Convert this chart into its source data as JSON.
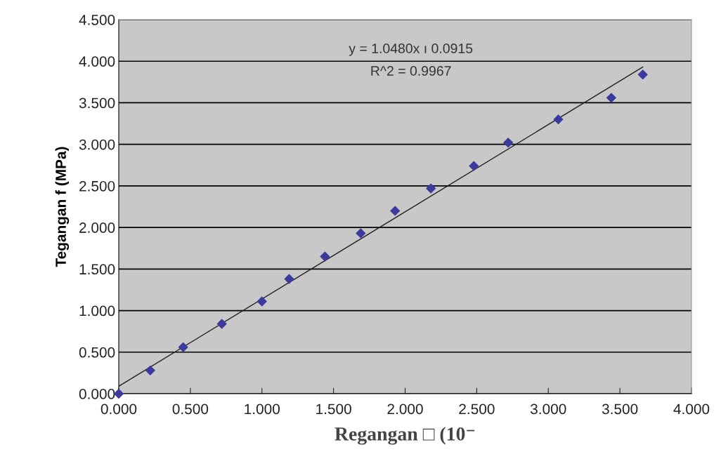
{
  "chart_data": {
    "type": "scatter",
    "xlabel": "Regangan □ (10⁻",
    "ylabel": "Tegangan f (MPa)",
    "annotations": [
      "y = 1.0480x ı 0.0915",
      "R^2 = 0.9967"
    ],
    "series": [
      {
        "color": "#3b3b9e",
        "marker": "diamond",
        "x": [
          0,
          0.22,
          0.45,
          0.72,
          1.0,
          1.19,
          1.44,
          1.69,
          1.93,
          2.18,
          2.48,
          2.72,
          3.07,
          3.44,
          3.66
        ],
        "values": [
          0,
          0.28,
          0.56,
          0.84,
          1.11,
          1.38,
          1.65,
          1.93,
          2.2,
          2.47,
          2.74,
          3.02,
          3.3,
          3.56,
          3.84
        ]
      },
      {
        "type": "line",
        "color": "#222222",
        "marker": "none",
        "x": [
          0,
          3.66
        ],
        "values": [
          0.09,
          3.93
        ]
      }
    ],
    "xlim": [
      0,
      4
    ],
    "ylim": [
      0,
      4.5
    ],
    "xticks": [
      {
        "value": 0,
        "label": "0.000"
      },
      {
        "value": 0.5,
        "label": "0.500"
      },
      {
        "value": 1,
        "label": "1.000"
      },
      {
        "value": 1.5,
        "label": "1.500"
      },
      {
        "value": 2,
        "label": "2.000"
      },
      {
        "value": 2.5,
        "label": "2.500"
      },
      {
        "value": 3,
        "label": "3.000"
      },
      {
        "value": 3.5,
        "label": "3.500"
      },
      {
        "value": 4,
        "label": "4.000"
      }
    ],
    "yticks": [
      {
        "value": 0,
        "label": "0.000"
      },
      {
        "value": 0.5,
        "label": "0.500"
      },
      {
        "value": 1,
        "label": "1.000"
      },
      {
        "value": 1.5,
        "label": "1.500"
      },
      {
        "value": 2,
        "label": "2.000"
      },
      {
        "value": 2.5,
        "label": "2.500"
      },
      {
        "value": 3,
        "label": "3.000"
      },
      {
        "value": 3.5,
        "label": "3.500"
      },
      {
        "value": 4,
        "label": "4.000"
      },
      {
        "value": 4.5,
        "label": "4.500"
      }
    ],
    "grid": "y",
    "legend": false
  }
}
